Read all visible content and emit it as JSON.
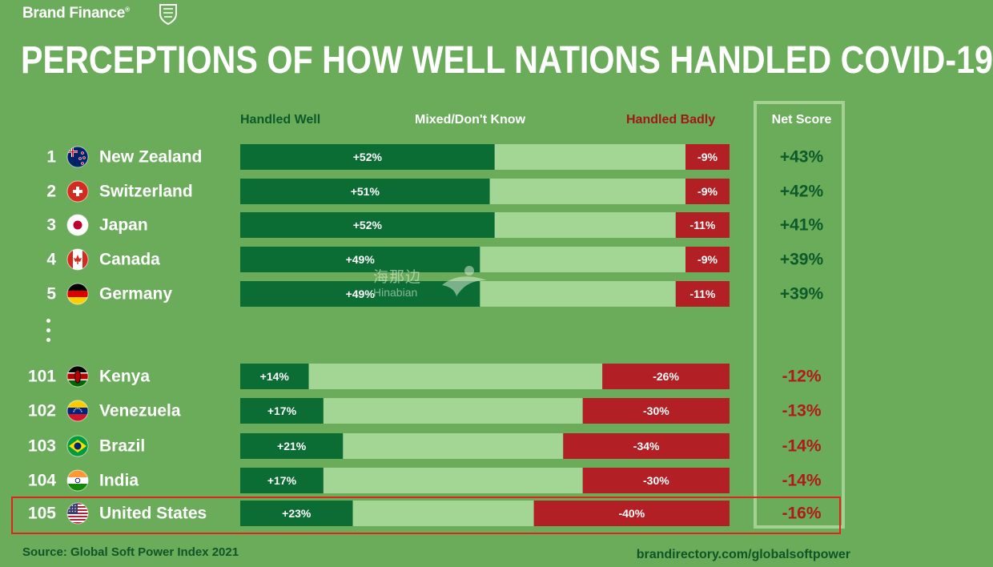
{
  "header": {
    "brand": "Brand Finance",
    "brand_mark": "®",
    "title": "PERCEPTIONS OF HOW WELL NATIONS HANDLED COVID-19"
  },
  "columns": {
    "handled_well": "Handled Well",
    "mixed": "Mixed/Don't Know",
    "handled_badly": "Handled Badly",
    "net_score": "Net Score"
  },
  "colors": {
    "background": "#6aac5a",
    "handled_well": "#0b6d34",
    "mixed": "#a3d595",
    "handled_badly": "#b21f24",
    "net_positive": "#0d5a2a",
    "net_negative": "#b01a1a",
    "highlight": "#e0261c"
  },
  "chart_data": {
    "type": "bar",
    "stacked": true,
    "title": "PERCEPTIONS OF HOW WELL NATIONS HANDLED COVID-19",
    "segments": [
      "Handled Well",
      "Mixed/Don't Know",
      "Handled Badly"
    ],
    "rows": [
      {
        "rank": "1",
        "country": "New Zealand",
        "flag": "new-zealand-flag-icon",
        "well": 52,
        "mixed": 39,
        "badly": 9,
        "well_label": "+52%",
        "badly_label": "-9%",
        "net": 43,
        "net_label": "+43%"
      },
      {
        "rank": "2",
        "country": "Switzerland",
        "flag": "switzerland-flag-icon",
        "well": 51,
        "mixed": 40,
        "badly": 9,
        "well_label": "+51%",
        "badly_label": "-9%",
        "net": 42,
        "net_label": "+42%"
      },
      {
        "rank": "3",
        "country": "Japan",
        "flag": "japan-flag-icon",
        "well": 52,
        "mixed": 37,
        "badly": 11,
        "well_label": "+52%",
        "badly_label": "-11%",
        "net": 41,
        "net_label": "+41%"
      },
      {
        "rank": "4",
        "country": "Canada",
        "flag": "canada-flag-icon",
        "well": 49,
        "mixed": 42,
        "badly": 9,
        "well_label": "+49%",
        "badly_label": "-9%",
        "net": 39,
        "net_label": "+39%"
      },
      {
        "rank": "5",
        "country": "Germany",
        "flag": "germany-flag-icon",
        "well": 49,
        "mixed": 40,
        "badly": 11,
        "well_label": "+49%",
        "badly_label": "-11%",
        "net": 39,
        "net_label": "+39%"
      },
      {
        "rank": "101",
        "country": "Kenya",
        "flag": "kenya-flag-icon",
        "well": 14,
        "mixed": 60,
        "badly": 26,
        "well_label": "+14%",
        "badly_label": "-26%",
        "net": -12,
        "net_label": "-12%"
      },
      {
        "rank": "102",
        "country": "Venezuela",
        "flag": "venezuela-flag-icon",
        "well": 17,
        "mixed": 53,
        "badly": 30,
        "well_label": "+17%",
        "badly_label": "-30%",
        "net": -13,
        "net_label": "-13%"
      },
      {
        "rank": "103",
        "country": "Brazil",
        "flag": "brazil-flag-icon",
        "well": 21,
        "mixed": 45,
        "badly": 34,
        "well_label": "+21%",
        "badly_label": "-34%",
        "net": -14,
        "net_label": "-14%"
      },
      {
        "rank": "104",
        "country": "India",
        "flag": "india-flag-icon",
        "well": 17,
        "mixed": 53,
        "badly": 30,
        "well_label": "+17%",
        "badly_label": "-30%",
        "net": -14,
        "net_label": "-14%"
      },
      {
        "rank": "105",
        "country": "United States",
        "flag": "united-states-flag-icon",
        "well": 23,
        "mixed": 37,
        "badly": 40,
        "well_label": "+23%",
        "badly_label": "-40%",
        "net": -16,
        "net_label": "-16%",
        "highlighted": true
      }
    ]
  },
  "watermark": {
    "cn": "海那边",
    "en": "Hinabian"
  },
  "footer": {
    "source": "Source: Global Soft Power Index 2021",
    "site": "brandirectory.com/globalsoftpower"
  }
}
